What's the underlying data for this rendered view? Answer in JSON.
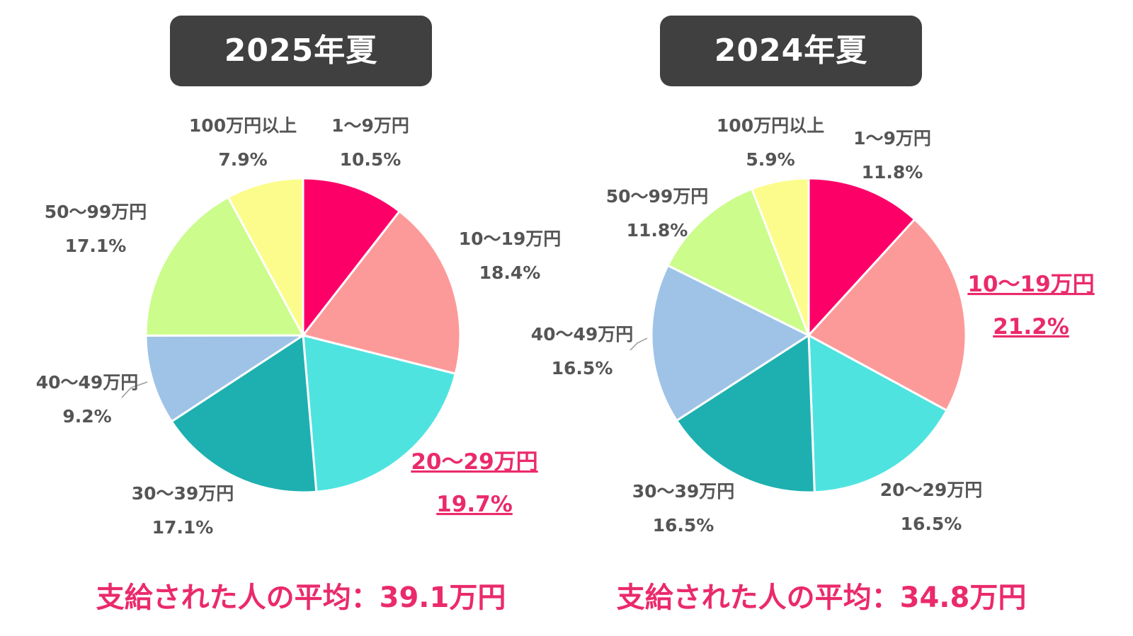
{
  "chart_data": [
    {
      "type": "pie",
      "title": "2025年夏",
      "categories": [
        "1〜9万円",
        "10〜19万円",
        "20〜29万円",
        "30〜39万円",
        "40〜49万円",
        "50〜99万円",
        "100万円以上"
      ],
      "values": [
        10.5,
        18.4,
        19.7,
        17.1,
        9.2,
        17.1,
        7.9
      ],
      "value_labels": [
        "10.5%",
        "18.4%",
        "19.7%",
        "17.1%",
        "9.2%",
        "17.1%",
        "7.9%"
      ],
      "colors": [
        "#fc0068",
        "#fc9a9a",
        "#4fe3e0",
        "#1eb0b0",
        "#9ec3e7",
        "#ccfc8c",
        "#fcfc8c"
      ],
      "highlight_index": 2,
      "average_text": "支給された人の平均：39.1万円"
    },
    {
      "type": "pie",
      "title": "2024年夏",
      "categories": [
        "1〜9万円",
        "10〜19万円",
        "20〜29万円",
        "30〜39万円",
        "40〜49万円",
        "50〜99万円",
        "100万円以上"
      ],
      "values": [
        11.8,
        21.2,
        16.5,
        16.5,
        16.5,
        11.8,
        5.9
      ],
      "value_labels": [
        "11.8%",
        "21.2%",
        "16.5%",
        "16.5%",
        "16.5%",
        "11.8%",
        "5.9%"
      ],
      "colors": [
        "#fc0068",
        "#fc9a9a",
        "#4fe3e0",
        "#1eb0b0",
        "#9ec3e7",
        "#ccfc8c",
        "#fcfc8c"
      ],
      "highlight_index": 1,
      "average_text": "支給された人の平均：34.8万円"
    }
  ]
}
